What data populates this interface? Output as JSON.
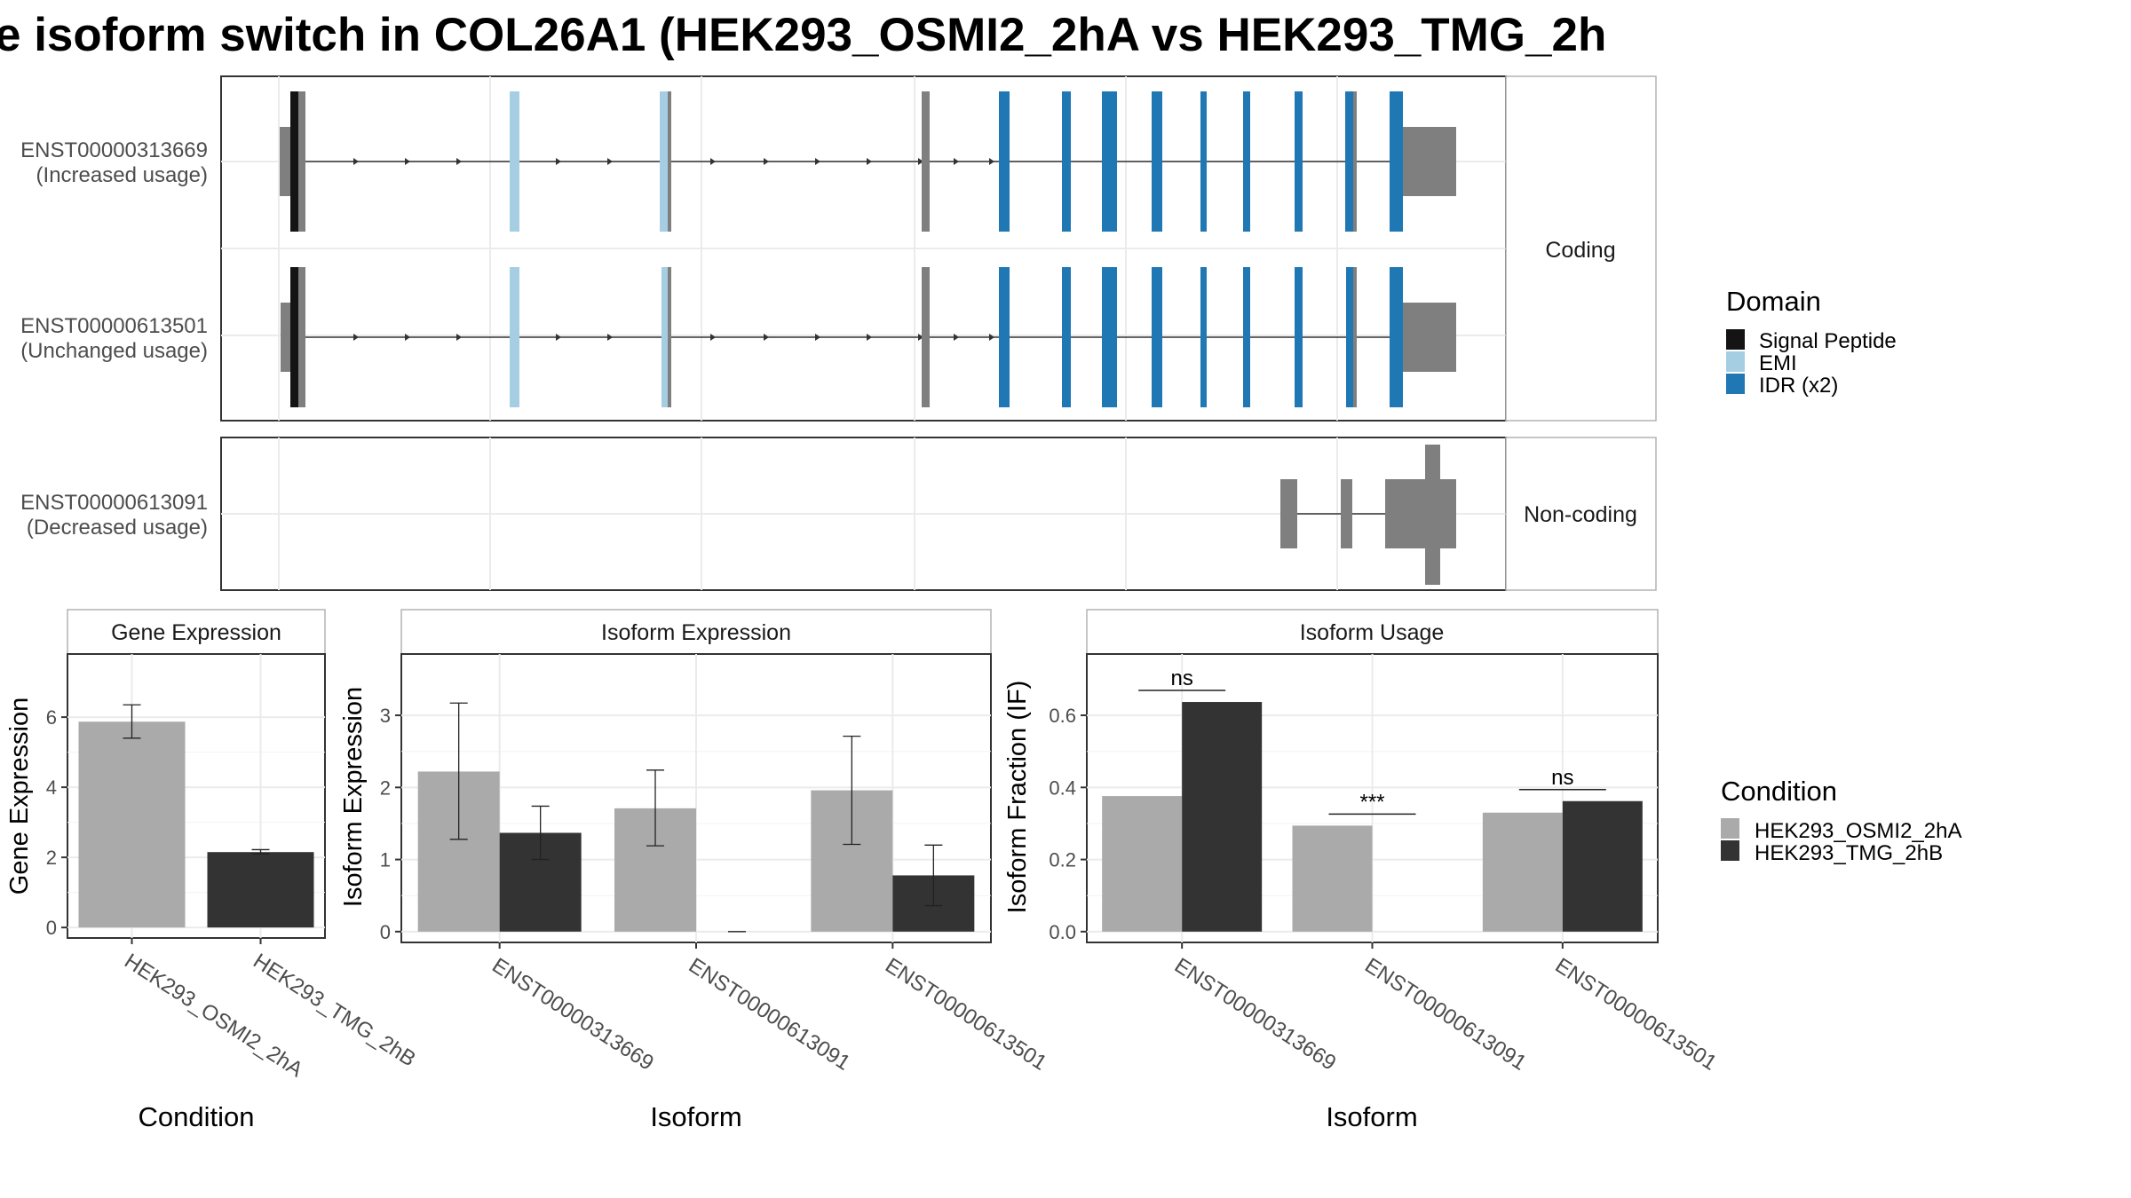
{
  "title": "e isoform switch in COL26A1 (HEK293_OSMI2_2hA vs HEK293_TMG_2h",
  "colors": {
    "signal_peptide": "#141414",
    "emi": "#a6cee3",
    "idr": "#1f78b4",
    "grey_feature": "#7f7f7f",
    "osmi": "#aaaaaa",
    "tmg": "#333333"
  },
  "structure": {
    "coding_strip": "Coding",
    "noncoding_strip": "Non-coding",
    "isoforms": [
      {
        "id": "ENST00000313669",
        "usage": "(Increased usage)"
      },
      {
        "id": "ENST00000613501",
        "usage": "(Unchanged usage)"
      },
      {
        "id": "ENST00000613091",
        "usage": "(Decreased usage)"
      }
    ]
  },
  "domain_legend": {
    "title": "Domain",
    "items": [
      {
        "label": "Signal Peptide",
        "color": "#141414"
      },
      {
        "label": "EMI",
        "color": "#a6cee3"
      },
      {
        "label": "IDR (x2)",
        "color": "#1f78b4"
      }
    ]
  },
  "condition_legend": {
    "title": "Condition",
    "items": [
      {
        "label": "HEK293_OSMI2_2hA",
        "color": "#aaaaaa"
      },
      {
        "label": "HEK293_TMG_2hB",
        "color": "#333333"
      }
    ]
  },
  "chart_data": [
    {
      "type": "bar",
      "title": "Gene Expression",
      "xlabel": "Condition",
      "ylabel": "Gene Expression",
      "categories": [
        "HEK293_OSMI2_2hA",
        "HEK293_TMG_2hB"
      ],
      "values": [
        5.87,
        2.15
      ],
      "errors": [
        [
          5.4,
          6.35
        ],
        [
          2.1,
          2.22
        ]
      ],
      "ylim": [
        -0.3,
        7.8
      ],
      "yticks": [
        0,
        2,
        4,
        6
      ]
    },
    {
      "type": "bar",
      "title": "Isoform Expression",
      "xlabel": "Isoform",
      "ylabel": "Isoform Expression",
      "categories": [
        "ENST00000313669",
        "ENST00000613091",
        "ENST00000613501"
      ],
      "series": [
        {
          "name": "HEK293_OSMI2_2hA",
          "values": [
            2.22,
            1.71,
            1.96
          ],
          "errors": [
            [
              1.28,
              3.17
            ],
            [
              1.19,
              2.24
            ],
            [
              1.21,
              2.71
            ]
          ]
        },
        {
          "name": "HEK293_TMG_2hB",
          "values": [
            1.37,
            0.0,
            0.78
          ],
          "errors": [
            [
              1.0,
              1.74
            ],
            [
              0.0,
              0.0
            ],
            [
              0.36,
              1.2
            ]
          ]
        }
      ],
      "ylim": [
        -0.15,
        3.85
      ],
      "yticks": [
        0,
        1,
        2,
        3
      ]
    },
    {
      "type": "bar",
      "title": "Isoform Usage",
      "xlabel": "Isoform",
      "ylabel": "Isoform Fraction (IF)",
      "categories": [
        "ENST00000313669",
        "ENST00000613091",
        "ENST00000613501"
      ],
      "series": [
        {
          "name": "HEK293_OSMI2_2hA",
          "values": [
            0.376,
            0.294,
            0.33
          ]
        },
        {
          "name": "HEK293_TMG_2hB",
          "values": [
            0.637,
            0.0,
            0.362
          ]
        }
      ],
      "significance": [
        "ns",
        "***",
        "ns"
      ],
      "ylim": [
        -0.03,
        0.77
      ],
      "yticks": [
        "0.0",
        "0.2",
        "0.4",
        "0.6"
      ]
    }
  ]
}
